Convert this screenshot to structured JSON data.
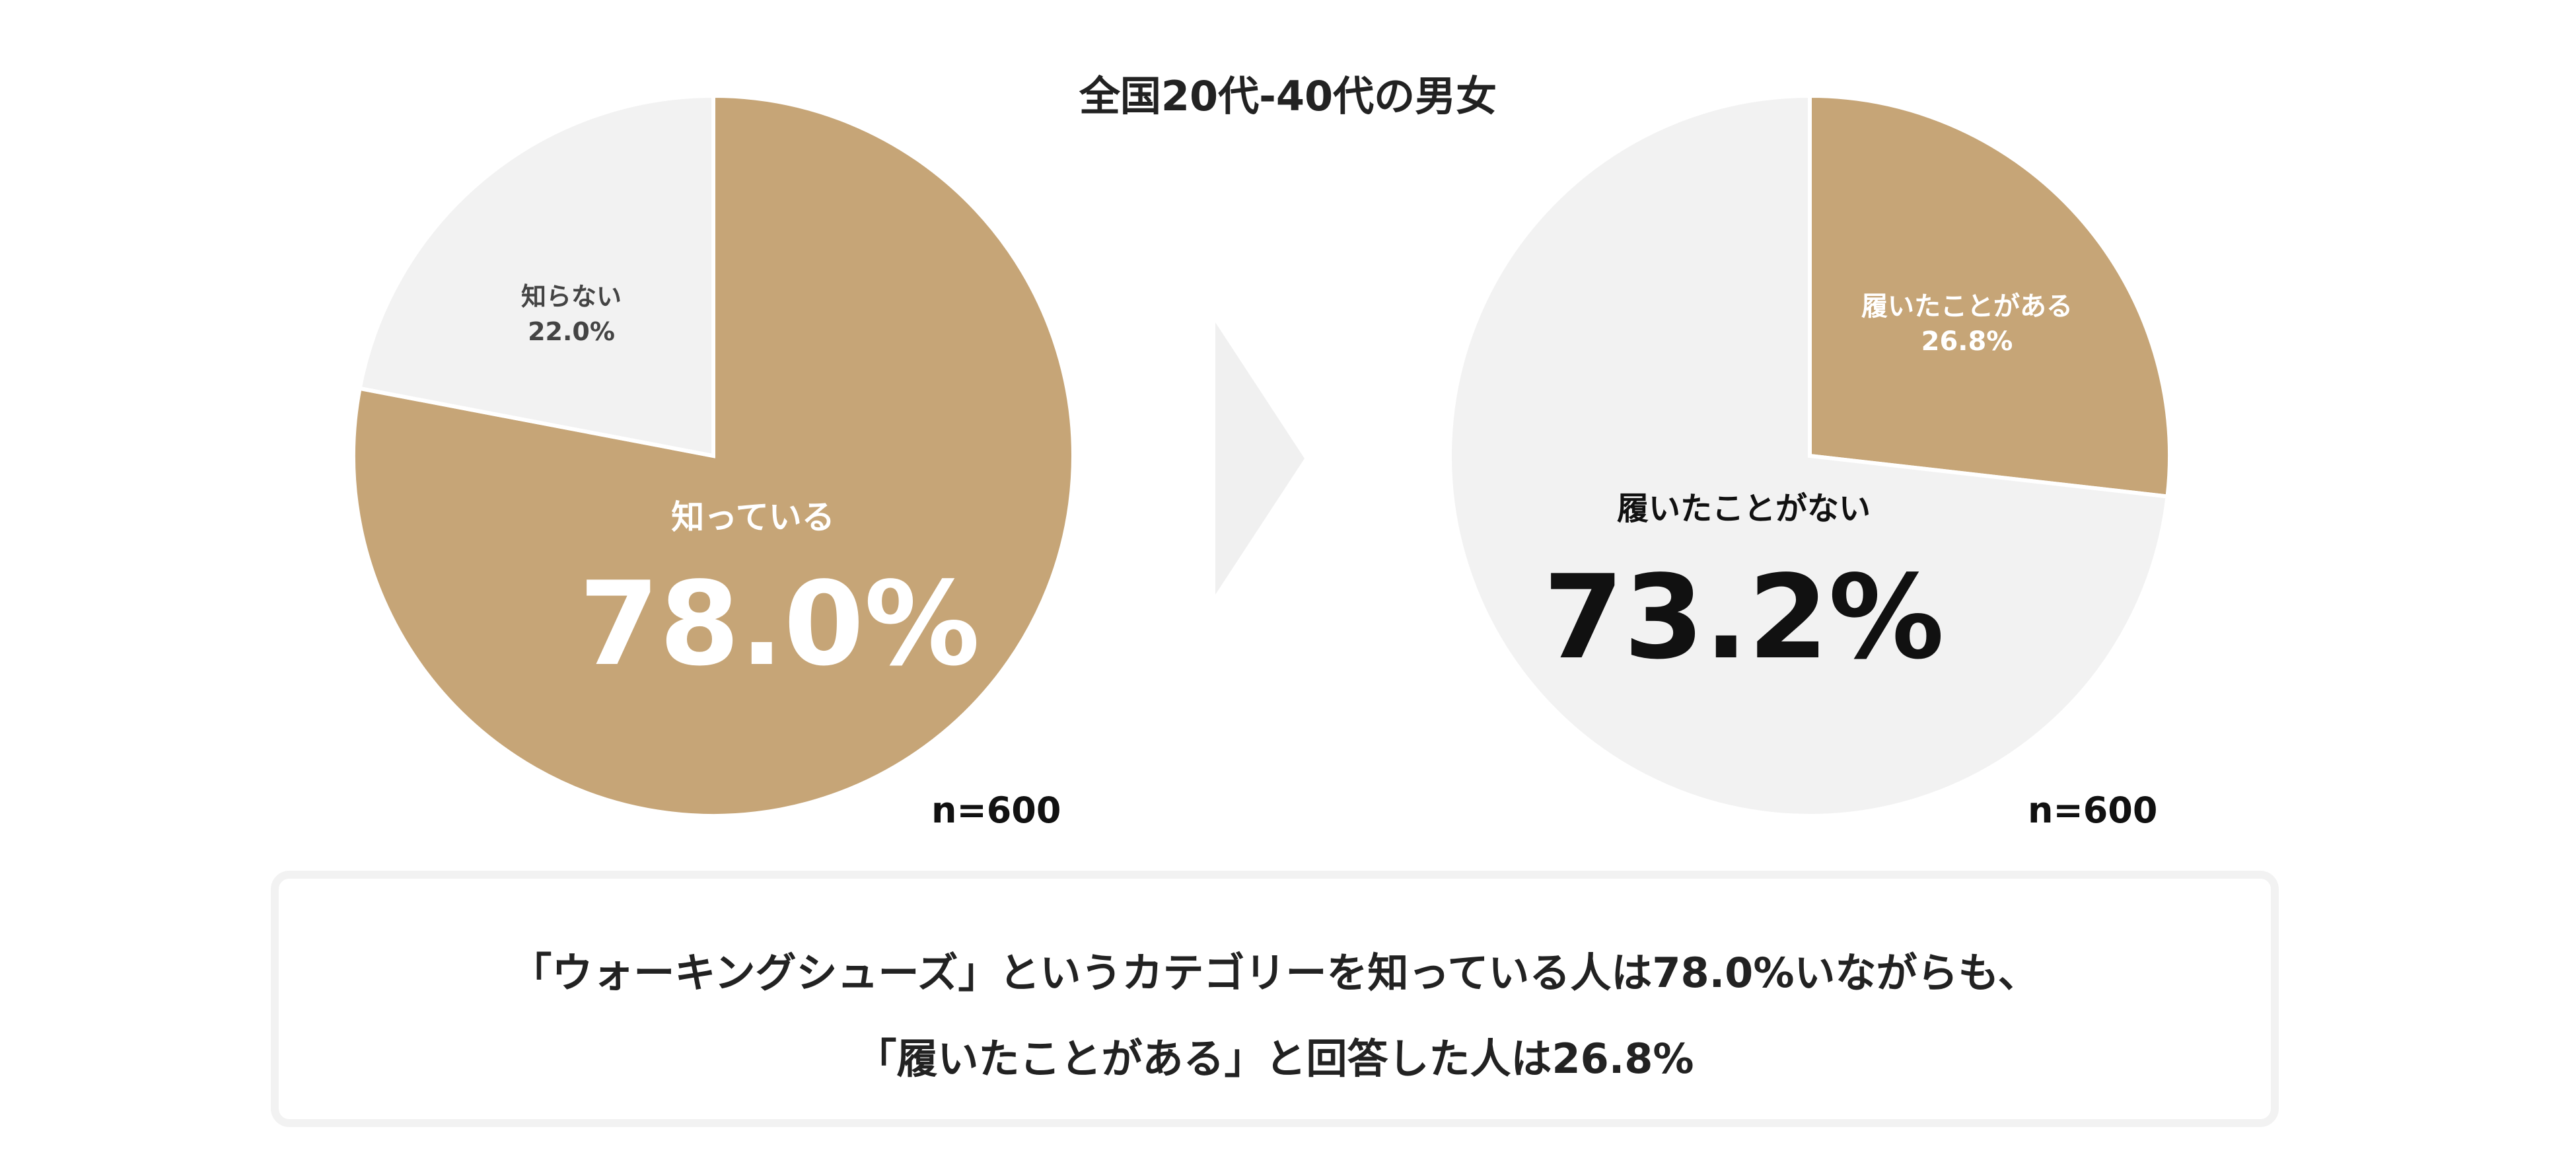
{
  "title": "全国20代-40代の男女",
  "colors": {
    "tan": "#c6a577",
    "light": "#f2f2f2",
    "arrow": "#f0f0f0",
    "dark_text": "#111111",
    "mid_text": "#444444",
    "white_text": "#ffffff"
  },
  "chart_data": [
    {
      "type": "pie",
      "n_label": "n=600",
      "slices": [
        {
          "label": "知っている",
          "value": 78.0,
          "display": "78.0%",
          "color": "#c6a577",
          "emphasis": true
        },
        {
          "label": "知らない",
          "value": 22.0,
          "display": "22.0%",
          "color": "#f2f2f2",
          "emphasis": false
        }
      ]
    },
    {
      "type": "pie",
      "n_label": "n=600",
      "slices": [
        {
          "label": "履いたことがある",
          "value": 26.8,
          "display": "26.8%",
          "color": "#c6a577",
          "emphasis": false
        },
        {
          "label": "履いたことがない",
          "value": 73.2,
          "display": "73.2%",
          "color": "#f2f2f2",
          "emphasis": true
        }
      ]
    }
  ],
  "summary": {
    "line1": "「ウォーキングシューズ」というカテゴリーを知っている人は78.0%いながらも、",
    "line2": "「履いたことがある」と回答した人は26.8%"
  }
}
